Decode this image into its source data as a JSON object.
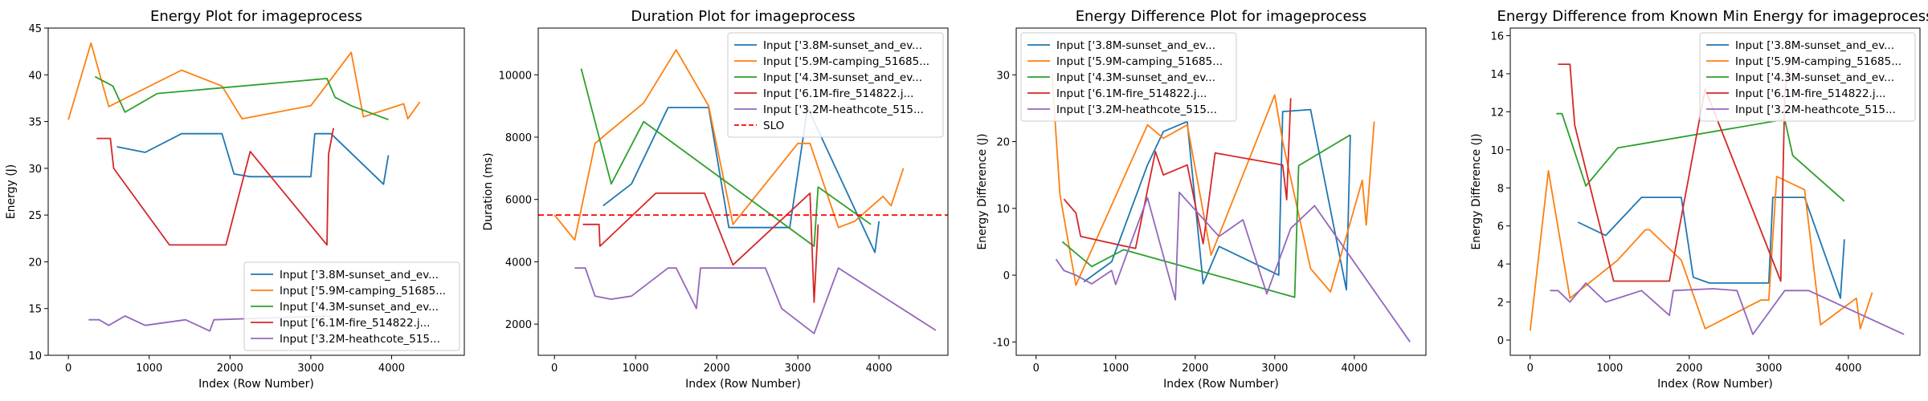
{
  "colors": {
    "Input ['3.8M-sunset_and_ev...": "#1f77b4",
    "Input ['5.9M-camping_51685...": "#ff7f0e",
    "Input ['4.3M-sunset_and_ev...": "#2ca02c",
    "Input ['6.1M-fire_514822.j...": "#d62728",
    "Input ['3.2M-heathcote_515...": "#9467bd",
    "SLO": "#ff0000"
  },
  "chart_data": [
    {
      "type": "line",
      "title": "Energy Plot for imageprocess",
      "xlabel": "Index (Row Number)",
      "ylabel": "Energy (J)",
      "xlim": [
        -250,
        4900
      ],
      "ylim": [
        10,
        45
      ],
      "xticks": [
        0,
        1000,
        2000,
        3000,
        4000
      ],
      "yticks": [
        10,
        15,
        20,
        25,
        30,
        35,
        40,
        45
      ],
      "legend_position": "lower-right",
      "series": [
        {
          "name": "Input ['3.8M-sunset_and_ev...",
          "points": [
            [
              600,
              32.3
            ],
            [
              950,
              31.7
            ],
            [
              1400,
              33.7
            ],
            [
              1900,
              33.7
            ],
            [
              2050,
              29.4
            ],
            [
              2250,
              29.1
            ],
            [
              3000,
              29.1
            ],
            [
              3050,
              33.7
            ],
            [
              3250,
              33.7
            ],
            [
              3900,
              28.3
            ],
            [
              3960,
              31.4
            ]
          ]
        },
        {
          "name": "Input ['5.9M-camping_51685...",
          "points": [
            [
              0,
              35.2
            ],
            [
              280,
              43.4
            ],
            [
              500,
              36.6
            ],
            [
              1400,
              40.5
            ],
            [
              1900,
              38.8
            ],
            [
              2150,
              35.3
            ],
            [
              3000,
              36.7
            ],
            [
              3150,
              38.4
            ],
            [
              3500,
              42.4
            ],
            [
              3650,
              35.5
            ],
            [
              4150,
              36.9
            ],
            [
              4200,
              35.3
            ],
            [
              4350,
              37.1
            ]
          ]
        },
        {
          "name": "Input ['4.3M-sunset_and_ev...",
          "points": [
            [
              330,
              39.8
            ],
            [
              550,
              38.8
            ],
            [
              700,
              36.0
            ],
            [
              1100,
              38.0
            ],
            [
              3200,
              39.6
            ],
            [
              3300,
              37.6
            ],
            [
              3500,
              36.7
            ],
            [
              3960,
              35.2
            ]
          ]
        },
        {
          "name": "Input ['6.1M-fire_514822.j...",
          "points": [
            [
              350,
              33.2
            ],
            [
              520,
              33.2
            ],
            [
              560,
              30.0
            ],
            [
              1250,
              21.8
            ],
            [
              1950,
              21.8
            ],
            [
              2250,
              31.8
            ],
            [
              3200,
              21.8
            ],
            [
              3220,
              31.5
            ],
            [
              3280,
              34.3
            ]
          ]
        },
        {
          "name": "Input ['3.2M-heathcote_515...",
          "points": [
            [
              250,
              13.8
            ],
            [
              380,
              13.8
            ],
            [
              500,
              13.2
            ],
            [
              700,
              14.2
            ],
            [
              950,
              13.2
            ],
            [
              1450,
              13.8
            ],
            [
              1750,
              12.6
            ],
            [
              1800,
              13.8
            ],
            [
              3250,
              14.2
            ]
          ]
        }
      ]
    },
    {
      "type": "line",
      "title": "Duration Plot for imageprocess",
      "xlabel": "Index (Row Number)",
      "ylabel": "Duration (ms)",
      "xlim": [
        -200,
        4850
      ],
      "ylim": [
        1000,
        11500
      ],
      "xticks": [
        0,
        1000,
        2000,
        3000,
        4000
      ],
      "yticks": [
        2000,
        4000,
        6000,
        8000,
        10000
      ],
      "legend_position": "upper-right",
      "slo": 5500,
      "series": [
        {
          "name": "Input ['3.8M-sunset_and_ev...",
          "points": [
            [
              600,
              5800
            ],
            [
              950,
              6500
            ],
            [
              1400,
              8950
            ],
            [
              1900,
              8950
            ],
            [
              2150,
              5100
            ],
            [
              2900,
              5100
            ],
            [
              3120,
              8950
            ],
            [
              3950,
              4300
            ],
            [
              4000,
              5300
            ]
          ]
        },
        {
          "name": "Input ['5.9M-camping_51685...",
          "points": [
            [
              0,
              5500
            ],
            [
              250,
              4700
            ],
            [
              500,
              7800
            ],
            [
              1100,
              9100
            ],
            [
              1500,
              10800
            ],
            [
              1900,
              9000
            ],
            [
              2200,
              5200
            ],
            [
              3000,
              7800
            ],
            [
              3150,
              7800
            ],
            [
              3500,
              5100
            ],
            [
              3700,
              5300
            ],
            [
              4050,
              6100
            ],
            [
              4150,
              5800
            ],
            [
              4300,
              7000
            ]
          ]
        },
        {
          "name": "Input ['4.3M-sunset_and_ev...",
          "points": [
            [
              330,
              10200
            ],
            [
              700,
              6500
            ],
            [
              1100,
              8500
            ],
            [
              3200,
              4500
            ],
            [
              3250,
              6400
            ],
            [
              3900,
              5200
            ]
          ]
        },
        {
          "name": "Input ['6.1M-fire_514822.j...",
          "points": [
            [
              350,
              5200
            ],
            [
              550,
              5200
            ],
            [
              560,
              4500
            ],
            [
              1250,
              6200
            ],
            [
              1850,
              6200
            ],
            [
              2200,
              3900
            ],
            [
              3150,
              6200
            ],
            [
              3200,
              2700
            ],
            [
              3250,
              5200
            ]
          ]
        },
        {
          "name": "Input ['3.2M-heathcote_515...",
          "points": [
            [
              250,
              3800
            ],
            [
              380,
              3800
            ],
            [
              500,
              2900
            ],
            [
              700,
              2800
            ],
            [
              950,
              2900
            ],
            [
              1400,
              3800
            ],
            [
              1500,
              3800
            ],
            [
              1750,
              2500
            ],
            [
              1800,
              3800
            ],
            [
              2600,
              3800
            ],
            [
              2800,
              2500
            ],
            [
              3200,
              1700
            ],
            [
              3500,
              3800
            ],
            [
              4700,
              1800
            ]
          ]
        }
      ]
    },
    {
      "type": "line",
      "title": "Energy Difference Plot for imageprocess",
      "xlabel": "Index (Row Number)",
      "ylabel": "Energy Difference (J)",
      "xlim": [
        -250,
        4900
      ],
      "ylim": [
        -12,
        37
      ],
      "xticks": [
        0,
        1000,
        2000,
        3000,
        4000
      ],
      "yticks": [
        -10,
        0,
        10,
        20,
        30
      ],
      "legend_position": "upper-left",
      "series": [
        {
          "name": "Input ['3.8M-sunset_and_ev...",
          "points": [
            [
              600,
              -1
            ],
            [
              950,
              2
            ],
            [
              1400,
              16.5
            ],
            [
              1600,
              21.5
            ],
            [
              1900,
              23
            ],
            [
              2100,
              -1.3
            ],
            [
              2300,
              4.3
            ],
            [
              3050,
              0
            ],
            [
              3100,
              24.5
            ],
            [
              3450,
              24.8
            ],
            [
              3900,
              -2.2
            ],
            [
              3950,
              21
            ]
          ]
        },
        {
          "name": "Input ['5.9M-camping_51685...",
          "points": [
            [
              200,
              30
            ],
            [
              300,
              12
            ],
            [
              500,
              -1.5
            ],
            [
              1400,
              22.5
            ],
            [
              1600,
              20.5
            ],
            [
              1900,
              22.5
            ],
            [
              2200,
              3
            ],
            [
              2800,
              21
            ],
            [
              3000,
              27
            ],
            [
              3100,
              20
            ],
            [
              3450,
              1
            ],
            [
              3700,
              -2.5
            ],
            [
              4100,
              14.2
            ],
            [
              4150,
              7.5
            ],
            [
              4250,
              23
            ]
          ]
        },
        {
          "name": "Input ['4.3M-sunset_and_ev...",
          "points": [
            [
              330,
              5
            ],
            [
              700,
              1.3
            ],
            [
              1100,
              3.8
            ],
            [
              3250,
              -3.3
            ],
            [
              3300,
              16.4
            ],
            [
              3950,
              21
            ]
          ]
        },
        {
          "name": "Input ['6.1M-fire_514822.j...",
          "points": [
            [
              350,
              11.4
            ],
            [
              500,
              9.3
            ],
            [
              560,
              5.8
            ],
            [
              1250,
              4
            ],
            [
              1500,
              18.5
            ],
            [
              1600,
              15
            ],
            [
              1900,
              16.5
            ],
            [
              2100,
              4.7
            ],
            [
              2250,
              18.3
            ],
            [
              3100,
              16.5
            ],
            [
              3150,
              11.3
            ],
            [
              3200,
              26.5
            ]
          ]
        },
        {
          "name": "Input ['3.2M-heathcote_515...",
          "points": [
            [
              250,
              2.4
            ],
            [
              350,
              0.7
            ],
            [
              500,
              0
            ],
            [
              700,
              -1.3
            ],
            [
              950,
              0.7
            ],
            [
              1000,
              -1.4
            ],
            [
              1400,
              11.6
            ],
            [
              1750,
              -3.7
            ],
            [
              1800,
              12.4
            ],
            [
              2300,
              5.8
            ],
            [
              2600,
              8.3
            ],
            [
              2900,
              -2.8
            ],
            [
              3200,
              7
            ],
            [
              3500,
              10.4
            ],
            [
              4700,
              -10
            ]
          ]
        }
      ]
    },
    {
      "type": "line",
      "title": "Energy Difference from Known Min Energy for imageprocess",
      "xlabel": "Index (Row Number)",
      "ylabel": "Energy Difference (J)",
      "xlim": [
        -250,
        4900
      ],
      "ylim": [
        -0.8,
        16.4
      ],
      "xticks": [
        0,
        1000,
        2000,
        3000,
        4000
      ],
      "yticks": [
        0,
        2,
        4,
        6,
        8,
        10,
        12,
        14,
        16
      ],
      "legend_position": "upper-right",
      "series": [
        {
          "name": "Input ['3.8M-sunset_and_ev...",
          "points": [
            [
              600,
              6.2
            ],
            [
              950,
              5.5
            ],
            [
              1400,
              7.5
            ],
            [
              1900,
              7.5
            ],
            [
              2050,
              3.3
            ],
            [
              2250,
              3.0
            ],
            [
              3000,
              3.0
            ],
            [
              3050,
              7.5
            ],
            [
              3450,
              7.5
            ],
            [
              3900,
              2.2
            ],
            [
              3950,
              5.3
            ]
          ]
        },
        {
          "name": "Input ['5.9M-camping_51685...",
          "points": [
            [
              0,
              0.5
            ],
            [
              230,
              8.9
            ],
            [
              500,
              2.2
            ],
            [
              1100,
              4.2
            ],
            [
              1450,
              5.8
            ],
            [
              1500,
              5.8
            ],
            [
              1900,
              4.2
            ],
            [
              2200,
              0.6
            ],
            [
              2900,
              2.1
            ],
            [
              3000,
              2.1
            ],
            [
              3100,
              8.6
            ],
            [
              3450,
              7.9
            ],
            [
              3650,
              0.8
            ],
            [
              4100,
              2.2
            ],
            [
              4150,
              0.6
            ],
            [
              4300,
              2.5
            ]
          ]
        },
        {
          "name": "Input ['4.3M-sunset_and_ev...",
          "points": [
            [
              330,
              11.9
            ],
            [
              400,
              11.9
            ],
            [
              700,
              8.1
            ],
            [
              1100,
              10.1
            ],
            [
              3200,
              11.6
            ],
            [
              3300,
              9.7
            ],
            [
              3950,
              7.3
            ]
          ]
        },
        {
          "name": "Input ['6.1M-fire_514822.j...",
          "points": [
            [
              350,
              14.5
            ],
            [
              500,
              14.5
            ],
            [
              560,
              11.3
            ],
            [
              1050,
              3.1
            ],
            [
              1750,
              3.1
            ],
            [
              2200,
              13.2
            ],
            [
              3150,
              3.1
            ],
            [
              3200,
              13.0
            ],
            [
              3250,
              14.5
            ]
          ]
        },
        {
          "name": "Input ['3.2M-heathcote_515...",
          "points": [
            [
              250,
              2.6
            ],
            [
              350,
              2.6
            ],
            [
              500,
              2.0
            ],
            [
              700,
              3.0
            ],
            [
              950,
              2.0
            ],
            [
              1400,
              2.6
            ],
            [
              1750,
              1.3
            ],
            [
              1800,
              2.6
            ],
            [
              2300,
              2.7
            ],
            [
              2600,
              2.6
            ],
            [
              2800,
              0.3
            ],
            [
              3200,
              2.6
            ],
            [
              3500,
              2.6
            ],
            [
              4700,
              0.3
            ]
          ]
        }
      ]
    }
  ]
}
